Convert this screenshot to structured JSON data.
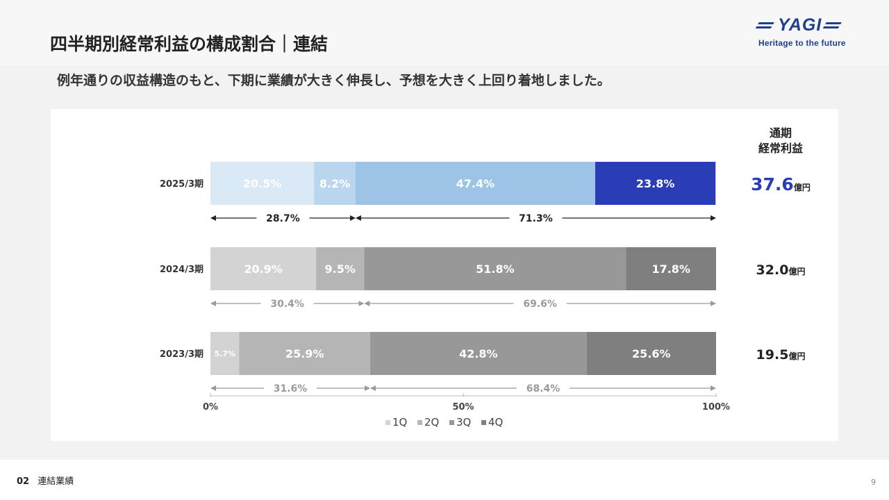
{
  "header": {
    "title": "四半期別経常利益の構成割合｜連結",
    "subtitle": "例年通りの収益構造のもと、下期に業績が大きく伸長し、予想を大きく上回り着地しました。"
  },
  "logo": {
    "brand": "YAGI",
    "tagline": "Heritage to the future"
  },
  "footer": {
    "section_number": "02",
    "section_label": "連結業績",
    "page_number": "9"
  },
  "chart_data": {
    "type": "bar",
    "orientation": "horizontal",
    "stacked": true,
    "percent_stacked": true,
    "categories": [
      "2025/3期",
      "2024/3期",
      "2023/3期"
    ],
    "series": [
      {
        "name": "1Q",
        "values": [
          20.5,
          20.9,
          5.7
        ]
      },
      {
        "name": "2Q",
        "values": [
          8.2,
          9.5,
          25.9
        ]
      },
      {
        "name": "3Q",
        "values": [
          47.4,
          51.8,
          42.8
        ]
      },
      {
        "name": "4Q",
        "values": [
          23.8,
          17.8,
          25.6
        ]
      }
    ],
    "data_labels": [
      [
        "20.5%",
        "8.2%",
        "47.4%",
        "23.8%"
      ],
      [
        "20.9%",
        "9.5%",
        "51.8%",
        "17.8%"
      ],
      [
        "5.7%",
        "25.9%",
        "42.8%",
        "25.6%"
      ]
    ],
    "half_year": {
      "first_half": [
        28.7,
        30.4,
        31.6
      ],
      "second_half": [
        71.3,
        69.6,
        68.4
      ],
      "labels": [
        [
          "28.7%",
          "71.3%"
        ],
        [
          "30.4%",
          "69.6%"
        ],
        [
          "31.6%",
          "68.4%"
        ]
      ]
    },
    "annual_header": [
      "通期",
      "経常利益"
    ],
    "annual_totals": [
      "37.6",
      "32.0",
      "19.5"
    ],
    "annual_unit": "億円",
    "xlim": [
      0,
      100
    ],
    "ticks": [
      0,
      50,
      100
    ],
    "tick_labels": [
      "0%",
      "50%",
      "100%"
    ],
    "legend_position": "bottom",
    "grid": false,
    "colors": {
      "highlight": [
        "#dae9f6",
        "#bad5ee",
        "#9dc3e6",
        "#2a3db6"
      ],
      "normal": [
        "#d3d3d3",
        "#b5b5b5",
        "#989898",
        "#7f7f7f"
      ],
      "highlight_total": "#2a3db6",
      "normal_total": "#222222",
      "arrow_highlight": "#222222",
      "arrow_normal": "#9a9a9a"
    }
  }
}
